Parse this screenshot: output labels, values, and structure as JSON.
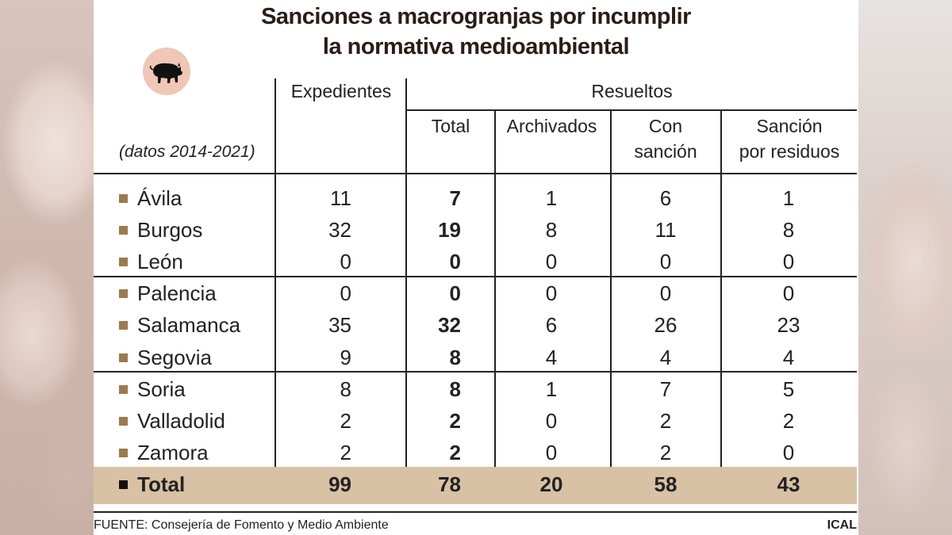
{
  "title_line1": "Sanciones a macrogranjas por incumplir",
  "title_line2": "la normativa medioambiental",
  "note": "(datos 2014-2021)",
  "icon": "pig-icon",
  "headers": {
    "expedientes": "Expedientes",
    "resueltos": "Resueltos",
    "total": "Total",
    "archivados": "Archivados",
    "con_sancion_1": "Con",
    "con_sancion_2": "sanción",
    "sancion_residuos_1": "Sanción",
    "sancion_residuos_2": "por residuos"
  },
  "chart_data": {
    "type": "table",
    "title": "Sanciones a macrogranjas por incumplir la normativa medioambiental",
    "columns": [
      "Expedientes",
      "Total",
      "Archivados",
      "Con sanción",
      "Sanción por residuos"
    ],
    "rows": [
      {
        "name": "Ávila",
        "values": [
          "11",
          "7",
          "1",
          "6",
          "1"
        ]
      },
      {
        "name": "Burgos",
        "values": [
          "32",
          "19",
          "8",
          "11",
          "8"
        ]
      },
      {
        "name": "León",
        "values": [
          "0",
          "0",
          "0",
          "0",
          "0"
        ]
      },
      {
        "name": "Palencia",
        "values": [
          "0",
          "0",
          "0",
          "0",
          "0"
        ]
      },
      {
        "name": "Salamanca",
        "values": [
          "35",
          "32",
          "6",
          "26",
          "23"
        ]
      },
      {
        "name": "Segovia",
        "values": [
          "9",
          "8",
          "4",
          "4",
          "4"
        ]
      },
      {
        "name": "Soria",
        "values": [
          "8",
          "8",
          "1",
          "7",
          "5"
        ]
      },
      {
        "name": "Valladolid",
        "values": [
          "2",
          "2",
          "0",
          "2",
          "2"
        ]
      },
      {
        "name": "Zamora",
        "values": [
          "2",
          "2",
          "0",
          "2",
          "0"
        ]
      }
    ],
    "total": {
      "name": "Total",
      "values": [
        "99",
        "78",
        "20",
        "58",
        "43"
      ]
    },
    "colors": {
      "bullet": "#9a7a4e",
      "total_band": "#d8c1a4",
      "icon_circle": "#f0c6b6"
    }
  },
  "footer": "FUENTE: Consejería de Fomento y Medio Ambiente",
  "credit": "ICAL"
}
